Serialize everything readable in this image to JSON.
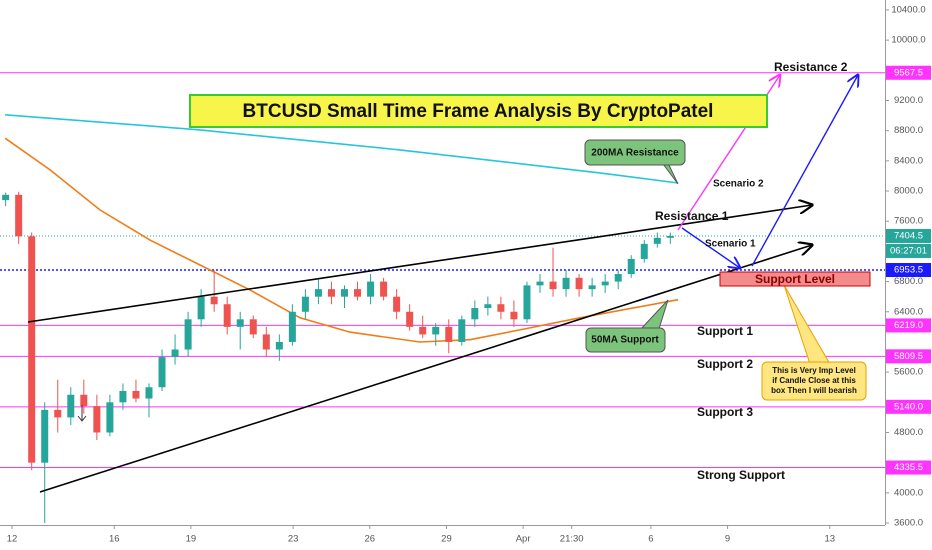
{
  "chart_data": {
    "type": "candlestick",
    "title": "BTCUSD Small Time Frame Analysis By CryptoPatel",
    "up_color": "#26a69a",
    "down_color": "#ef5350",
    "x": [
      -0.25,
      0.26,
      0.77,
      1.28,
      1.79,
      2.3,
      2.81,
      3.32,
      3.83,
      4.34,
      4.85,
      5.36,
      5.87,
      6.38,
      6.89,
      7.4,
      7.91,
      8.42,
      8.93,
      9.44,
      9.95,
      10.46,
      10.97,
      11.48,
      11.99,
      12.5,
      13.01,
      13.52,
      14.03,
      14.54,
      15.05,
      15.56,
      16.07,
      16.58,
      17.09,
      17.6,
      18.11,
      18.62,
      19.13,
      19.64,
      20.15,
      20.66,
      21.17,
      21.68,
      22.19,
      22.7,
      23.21,
      23.72,
      24.23,
      24.74,
      25.25,
      25.76
    ],
    "open": [
      7880,
      7950,
      7400,
      4400,
      5100,
      5000,
      5300,
      5150,
      4800,
      5200,
      5350,
      5250,
      5400,
      5800,
      5900,
      6300,
      6600,
      6500,
      6200,
      6300,
      6100,
      5900,
      6000,
      6400,
      6600,
      6700,
      6600,
      6700,
      6600,
      6800,
      6600,
      6400,
      6200,
      6100,
      6200,
      6000,
      6300,
      6450,
      6500,
      6400,
      6300,
      6750,
      6800,
      6700,
      6850,
      6700,
      6750,
      6800,
      6900,
      7100,
      7300,
      7380
    ],
    "high": [
      7980,
      7990,
      7450,
      5200,
      5500,
      5400,
      5500,
      5300,
      5300,
      5450,
      5500,
      5450,
      5900,
      6100,
      6400,
      6700,
      6950,
      6600,
      6400,
      6350,
      6200,
      6100,
      6500,
      6700,
      6850,
      6800,
      6750,
      6800,
      6900,
      6850,
      6700,
      6500,
      6350,
      6250,
      6300,
      6350,
      6550,
      6600,
      6600,
      6550,
      6800,
      6900,
      7250,
      6950,
      6900,
      6850,
      6900,
      6950,
      7150,
      7350,
      7450,
      7450
    ],
    "low": [
      7800,
      7300,
      4300,
      3600,
      4800,
      4900,
      5050,
      4700,
      4750,
      5100,
      5200,
      5000,
      5350,
      5700,
      5800,
      6200,
      6400,
      6100,
      5900,
      6050,
      5800,
      5750,
      5950,
      6300,
      6500,
      6500,
      6450,
      6550,
      6500,
      6550,
      6300,
      6150,
      6050,
      5950,
      5850,
      5950,
      6200,
      6350,
      6300,
      6200,
      6250,
      6650,
      6600,
      6600,
      6600,
      6600,
      6650,
      6700,
      6850,
      7050,
      7250,
      7300
    ],
    "close": [
      7950,
      7400,
      4400,
      5100,
      5000,
      5300,
      5150,
      4800,
      5200,
      5350,
      5250,
      5400,
      5800,
      5900,
      6300,
      6600,
      6500,
      6200,
      6300,
      6100,
      5900,
      6000,
      6400,
      6600,
      6700,
      6600,
      6700,
      6600,
      6800,
      6600,
      6400,
      6200,
      6100,
      6200,
      6000,
      6300,
      6450,
      6500,
      6400,
      6300,
      6750,
      6800,
      6700,
      6850,
      6700,
      6750,
      6800,
      6900,
      7100,
      7300,
      7380,
      7404.5
    ],
    "moving_averages": [
      {
        "color": "#26c6da",
        "x": [
          -0.27,
          7.36,
          15.18,
          23.0,
          26.06
        ],
        "values": [
          9010,
          8810,
          8545,
          8240,
          8107
        ]
      },
      {
        "color": "#ef7d17",
        "x": [
          -0.27,
          1.49,
          3.44,
          5.4,
          7.36,
          9.31,
          11.27,
          13.22,
          15.96,
          17.92,
          19.87,
          22.22,
          26.06
        ],
        "values": [
          8700,
          8280,
          7750,
          7350,
          7020,
          6690,
          6320,
          6130,
          6000,
          6030,
          6160,
          6320,
          6560
        ]
      }
    ],
    "levels": [
      {
        "value": 9567.5,
        "label": "9567.5"
      },
      {
        "value": 6219,
        "label": "6219.0"
      },
      {
        "value": 5809.5,
        "label": "5809.5"
      },
      {
        "value": 5140,
        "label": "5140.0"
      },
      {
        "value": 4335.5,
        "label": "4335.5"
      }
    ],
    "level_color": "#ff33ff",
    "price_markers": [
      {
        "value": 7404.5,
        "label": "7404.5",
        "color": "#26a69a"
      },
      {
        "value": 6953.5,
        "label": "6953.5",
        "color": "#1a1aff"
      }
    ],
    "countdown": "06:27:01",
    "xlim": [
      -0.47,
      34.16
    ],
    "ylim": [
      3574,
      10532
    ],
    "yticks": [
      {
        "value": 10400,
        "label": "10400.0"
      },
      {
        "value": 10000,
        "label": "10000.0"
      },
      {
        "value": 9200,
        "label": "9200.0"
      },
      {
        "value": 8800,
        "label": "8800.0"
      },
      {
        "value": 8400,
        "label": "8400.0"
      },
      {
        "value": 8000,
        "label": "8000.0"
      },
      {
        "value": 7600,
        "label": "7600.0"
      },
      {
        "value": 6800,
        "label": "6800.0"
      },
      {
        "value": 6400,
        "label": "6400.0"
      },
      {
        "value": 5600,
        "label": "5600.0"
      },
      {
        "value": 4800,
        "label": "4800.0"
      },
      {
        "value": 4000,
        "label": "4000.0"
      },
      {
        "value": 3600,
        "label": "3600.0"
      }
    ],
    "xticks": [
      {
        "value": 0,
        "label": "12"
      },
      {
        "value": 4,
        "label": "16"
      },
      {
        "value": 7,
        "label": "19"
      },
      {
        "value": 11,
        "label": "23"
      },
      {
        "value": 14,
        "label": "26"
      },
      {
        "value": 17,
        "label": "29"
      },
      {
        "value": 20,
        "label": "Apr"
      },
      {
        "value": 21.9,
        "label": "21:30"
      },
      {
        "value": 25,
        "label": "6"
      },
      {
        "value": 28,
        "label": "9"
      },
      {
        "value": 32,
        "label": "13"
      }
    ],
    "grid": false,
    "annotations": {
      "resistance_2": "Resistance 2",
      "ma200": "200MA Resistance",
      "scenario_2": "Scenario 2",
      "resistance_1": "Resistance 1",
      "scenario_1": "Scenario 1",
      "support_level": "Support Level",
      "support_1": "Support 1",
      "ma50": "50MA Support",
      "support_2": "Support 2",
      "note": [
        "This is Very Imp Level",
        "if Candle Close at this",
        "box Then I will bearish"
      ],
      "support_3": "Support 3",
      "strong_support": "Strong Support"
    }
  }
}
